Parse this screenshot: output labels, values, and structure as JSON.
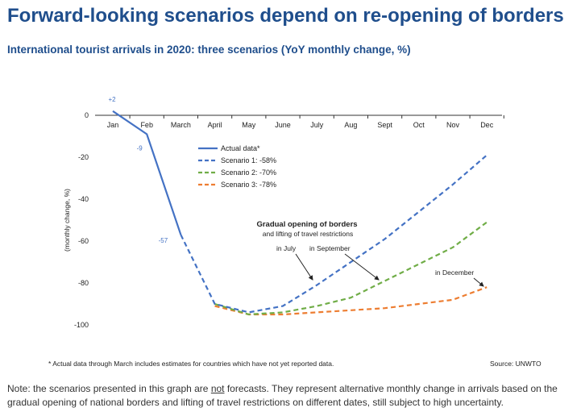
{
  "header": {
    "title": "Forward-looking scenarios depend on re-opening of borders",
    "subtitle": "International tourist arrivals in 2020: three scenarios (YoY monthly change, %)"
  },
  "chart_data": {
    "type": "line",
    "categories": [
      "Jan",
      "Feb",
      "March",
      "April",
      "May",
      "June",
      "July",
      "Aug",
      "Sept",
      "Oct",
      "Nov",
      "Dec"
    ],
    "ylabel": "(monthly change, %)",
    "ylim": [
      -100,
      0
    ],
    "yticks": [
      0,
      -20,
      -40,
      -60,
      -80,
      -100
    ],
    "grid": false,
    "legend_position": "upper-left",
    "series": [
      {
        "name": "Actual data*",
        "style": "solid",
        "color": "#4472c4",
        "values": [
          2,
          -9,
          -57,
          null,
          null,
          null,
          null,
          null,
          null,
          null,
          null,
          null
        ]
      },
      {
        "name": "Scenario 1:  -58%",
        "style": "dashed",
        "color": "#4472c4",
        "values": [
          null,
          null,
          -57,
          -90,
          -94,
          -91,
          -81,
          -70,
          -59,
          -46,
          -33,
          -19
        ]
      },
      {
        "name": "Scenario 2:  -70%",
        "style": "dashed",
        "color": "#70ad47",
        "values": [
          null,
          null,
          null,
          -90,
          -95,
          -94,
          -91,
          -87,
          -79,
          -71,
          -63,
          -51
        ]
      },
      {
        "name": "Scenario 3:  -78%",
        "style": "dashed",
        "color": "#ed7d31",
        "values": [
          null,
          null,
          null,
          -91,
          -95,
          -95,
          -94,
          -93,
          -92,
          -90,
          -88,
          -82
        ]
      }
    ],
    "data_labels": [
      "+2",
      "-9",
      "-57"
    ],
    "annotations": {
      "heading": "Gradual opening of borders",
      "subheading": "and lifting of travel restrictions",
      "july": "in July",
      "september": "in September",
      "december": "in December"
    }
  },
  "footer": {
    "footnote": "* Actual data through March includes estimates for countries which have not yet reported data.",
    "source": "Source: UNWTO",
    "note_before": "Note: the scenarios presented in this graph are ",
    "note_underlined": "not",
    "note_after": " forecasts. They represent alternative monthly change in arrivals based on the gradual opening of national borders and lifting of travel restrictions on different dates, still subject to high uncertainty."
  }
}
